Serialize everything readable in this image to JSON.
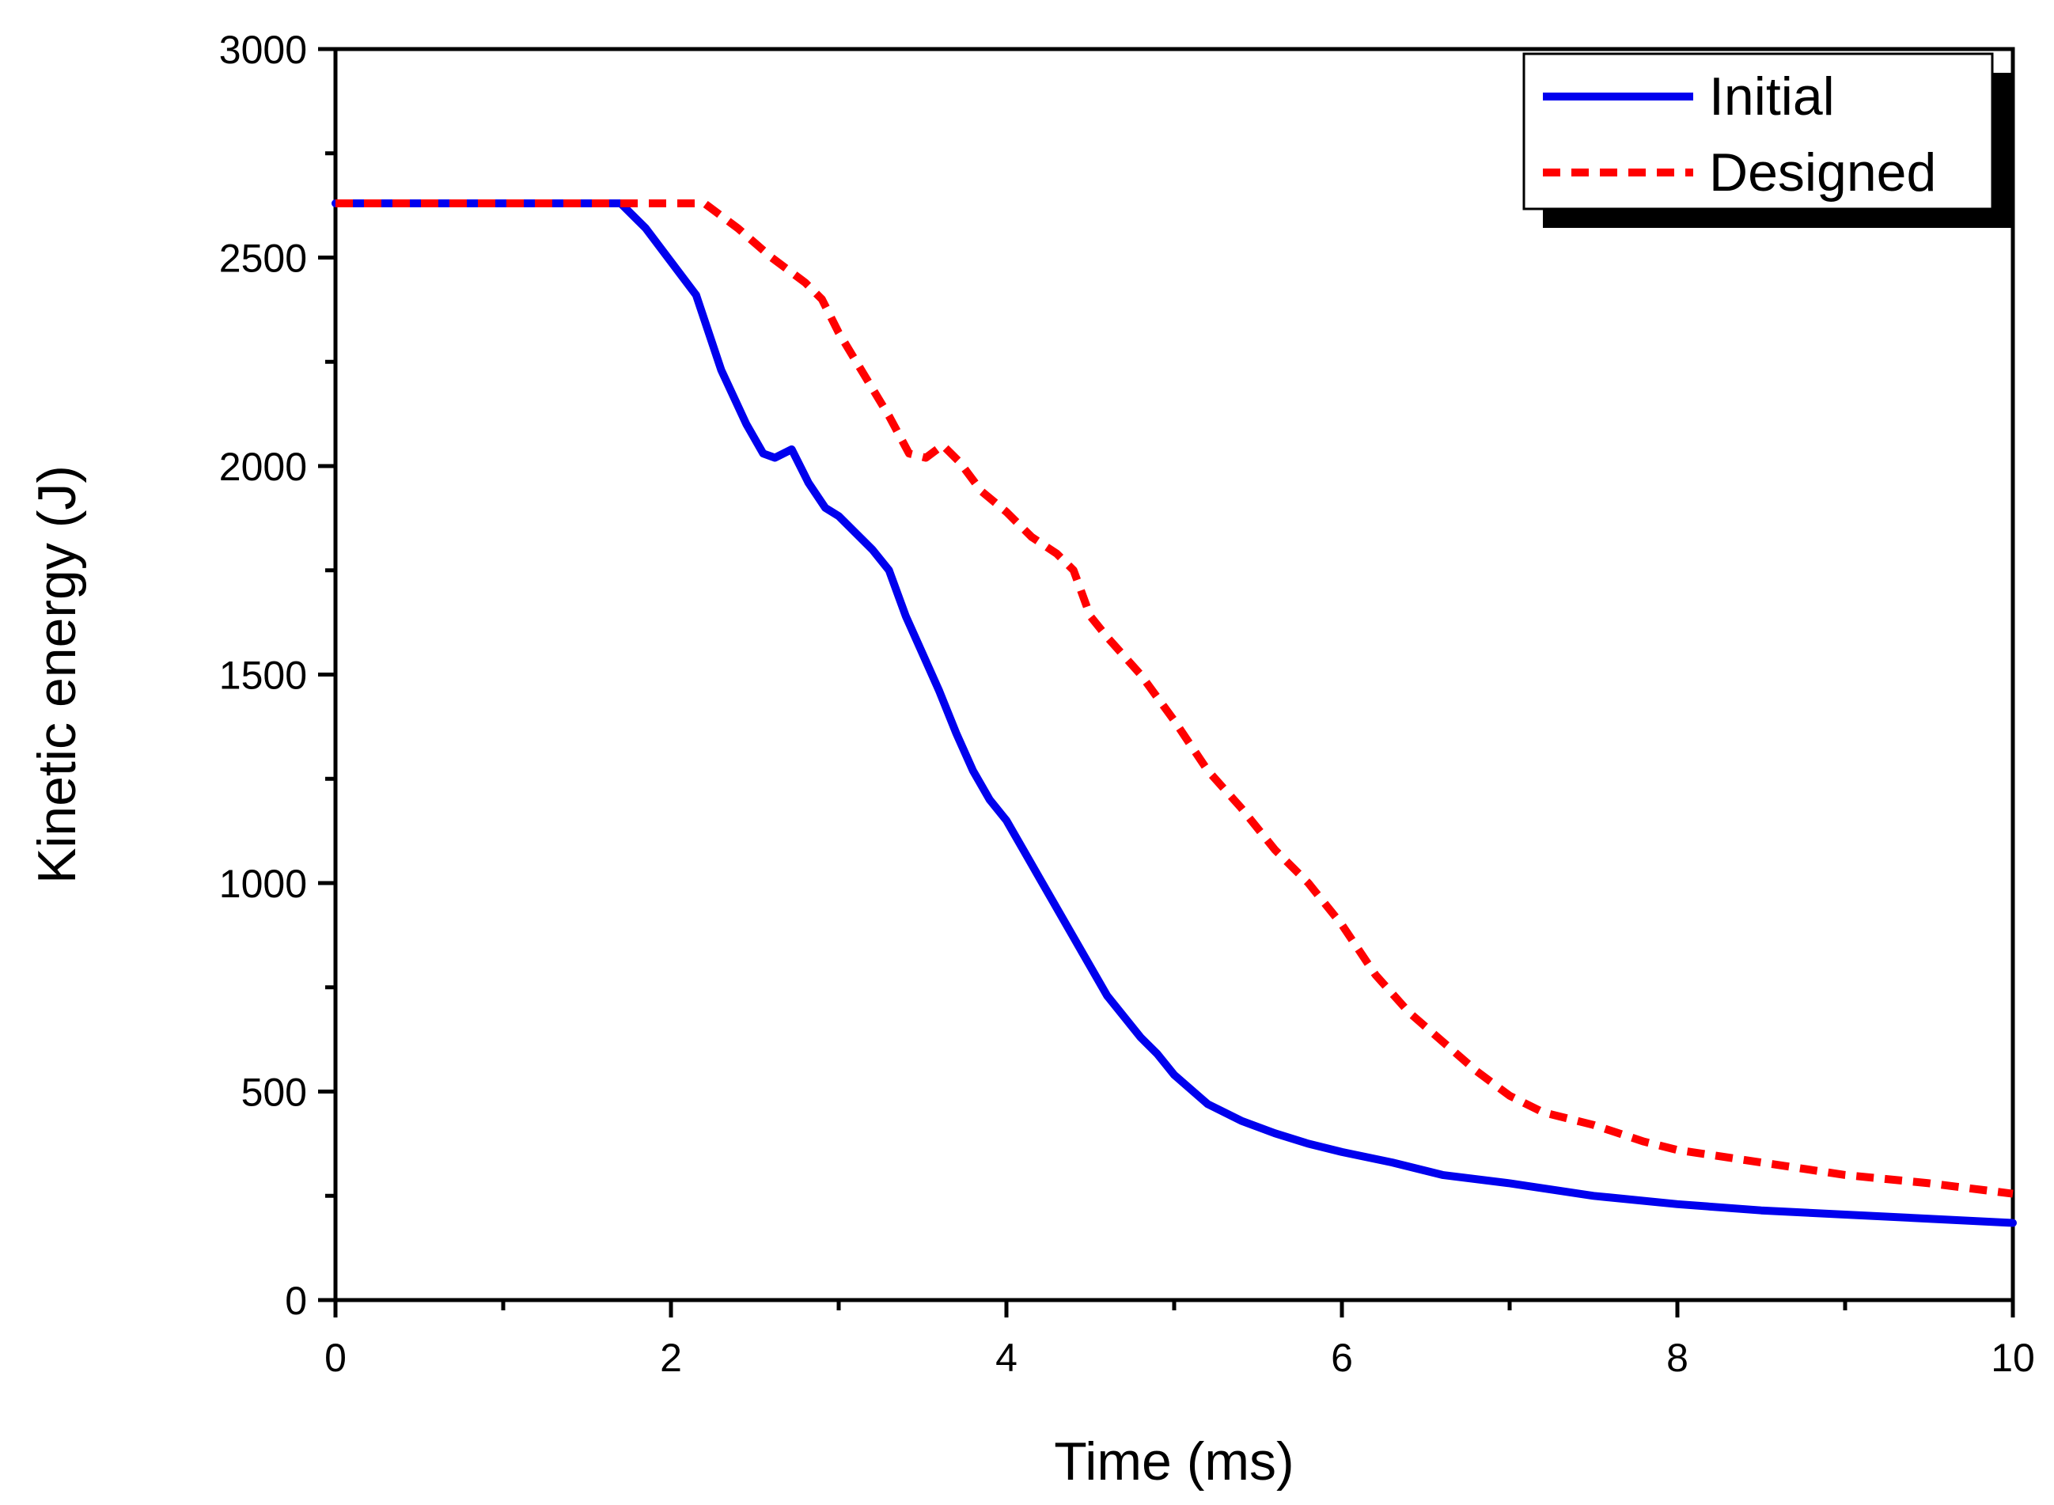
{
  "chart_data": {
    "type": "line",
    "title": "",
    "xlabel": "Time (ms)",
    "ylabel": "Kinetic energy (J)",
    "xlim": [
      0,
      10
    ],
    "ylim": [
      0,
      3000
    ],
    "xticks": [
      0,
      2,
      4,
      6,
      8,
      10
    ],
    "xtick_labels": [
      "0",
      "2",
      "4",
      "6",
      "8",
      "10"
    ],
    "yticks": [
      0,
      500,
      1000,
      1500,
      2000,
      2500,
      3000
    ],
    "ytick_labels": [
      "0",
      "500",
      "1000",
      "1500",
      "2000",
      "2500",
      "3000"
    ],
    "grid": false,
    "legend_position": "top-right",
    "series": [
      {
        "name": "Initial",
        "color": "#0000ee",
        "style": "solid",
        "x": [
          0,
          1.7,
          1.85,
          2.0,
          2.15,
          2.3,
          2.45,
          2.55,
          2.62,
          2.72,
          2.82,
          2.92,
          3.0,
          3.1,
          3.2,
          3.3,
          3.4,
          3.5,
          3.6,
          3.7,
          3.8,
          3.9,
          4.0,
          4.1,
          4.2,
          4.3,
          4.4,
          4.5,
          4.6,
          4.7,
          4.8,
          4.9,
          5.0,
          5.2,
          5.4,
          5.6,
          5.8,
          6.0,
          6.3,
          6.6,
          7.0,
          7.5,
          8.0,
          8.5,
          9.0,
          9.5,
          10.0
        ],
        "y": [
          2630,
          2630,
          2570,
          2490,
          2410,
          2230,
          2100,
          2030,
          2020,
          2040,
          1960,
          1900,
          1880,
          1840,
          1800,
          1750,
          1640,
          1550,
          1460,
          1360,
          1270,
          1200,
          1150,
          1080,
          1010,
          940,
          870,
          800,
          730,
          680,
          630,
          590,
          540,
          470,
          430,
          400,
          375,
          355,
          330,
          300,
          280,
          250,
          230,
          215,
          205,
          195,
          185
        ]
      },
      {
        "name": "Designed",
        "color": "#ff0000",
        "style": "dashed",
        "x": [
          0,
          1.7,
          2.0,
          2.2,
          2.4,
          2.6,
          2.8,
          2.9,
          3.0,
          3.15,
          3.3,
          3.42,
          3.52,
          3.62,
          3.72,
          3.85,
          4.0,
          4.15,
          4.3,
          4.4,
          4.5,
          4.6,
          4.8,
          5.0,
          5.2,
          5.4,
          5.6,
          5.8,
          6.0,
          6.2,
          6.4,
          6.6,
          6.8,
          7.0,
          7.2,
          7.5,
          7.8,
          8.0,
          8.5,
          9.0,
          9.5,
          10.0
        ],
        "y": [
          2630,
          2630,
          2630,
          2630,
          2570,
          2500,
          2440,
          2400,
          2320,
          2220,
          2120,
          2030,
          2020,
          2050,
          2010,
          1940,
          1890,
          1830,
          1790,
          1750,
          1640,
          1590,
          1500,
          1390,
          1270,
          1180,
          1080,
          1000,
          900,
          780,
          690,
          620,
          550,
          490,
          450,
          420,
          380,
          360,
          330,
          300,
          280,
          255
        ]
      }
    ]
  }
}
